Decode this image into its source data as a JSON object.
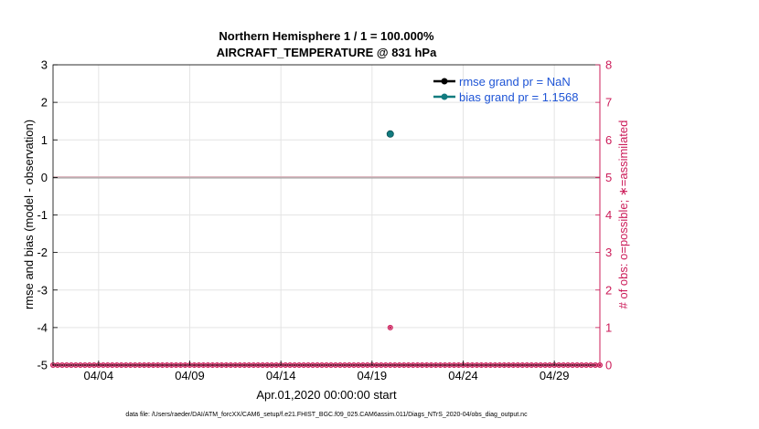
{
  "chart_data": {
    "type": "scatter",
    "title_line1": "Northern Hemisphere 1 / 1 = 100.000%",
    "title_line2": "AIRCRAFT_TEMPERATURE @ 831 hPa",
    "xlabel": "Apr.01,2020 00:00:00 start",
    "ylabel": "rmse and bias (model - observation)",
    "ylabel_right": "# of obs: o=possible; ∗=assimilated",
    "xlim": [
      1.5,
      31.5
    ],
    "ylim": [
      -5,
      3
    ],
    "ylim_right": [
      0,
      8
    ],
    "x_ticks": [
      4,
      9,
      14,
      19,
      24,
      29
    ],
    "x_tick_labels": [
      "04/04",
      "04/09",
      "04/14",
      "04/19",
      "04/24",
      "04/29"
    ],
    "y_ticks": [
      -5,
      -4,
      -3,
      -2,
      -1,
      0,
      1,
      2,
      3
    ],
    "y_tick_labels": [
      "-5",
      "-4",
      "-3",
      "-2",
      "-1",
      "0",
      "1",
      "2",
      "3"
    ],
    "y_ticks_right": [
      0,
      1,
      2,
      3,
      4,
      5,
      6,
      7,
      8
    ],
    "y_tick_labels_right": [
      "0",
      "1",
      "2",
      "3",
      "4",
      "5",
      "6",
      "7",
      "8"
    ],
    "grid": true,
    "zero_line": 0,
    "legend_position": "top-right",
    "series": [
      {
        "name": "rmse grand pr = NaN",
        "color": "#000000",
        "x": [],
        "y": []
      },
      {
        "name": "bias grand pr = 1.1568",
        "color": "#127b7f",
        "x": [
          20.0
        ],
        "y": [
          1.1568
        ]
      }
    ],
    "obs_counts": {
      "axis": "right",
      "color": "#cc1d5a",
      "x_start": 1.5,
      "x_end": 31.5,
      "x_step": 0.25,
      "baseline": 0,
      "nonzero_x": [
        20.0
      ],
      "nonzero_y": [
        1
      ]
    },
    "footer": "data file: /Users/raeder/DAI/ATM_forcXX/CAM6_setup/f.e21.FHIST_BGC.f09_025.CAM6assim.011/Diags_NTrS_2020-04/obs_diag_output.nc"
  }
}
